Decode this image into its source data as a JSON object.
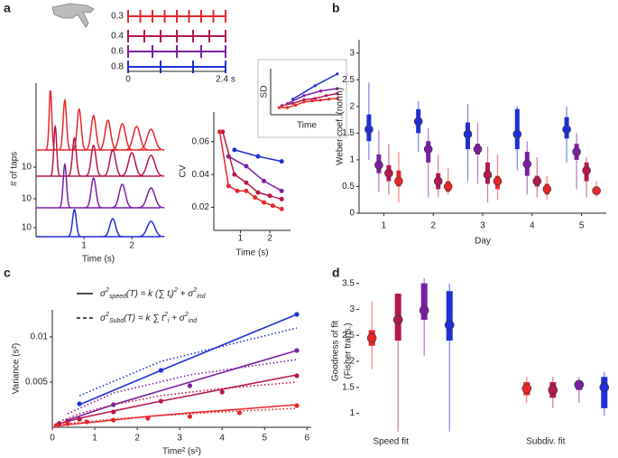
{
  "panel_labels": [
    "a",
    "b",
    "c",
    "d"
  ],
  "chart_data": [
    {
      "type": "raster",
      "xlim": [
        0,
        2.4
      ],
      "xticks": [
        0,
        {
          "value": 2.4,
          "label": "2.4 s"
        }
      ],
      "series": [
        {
          "name": "0.3",
          "color": "#e8272a",
          "values": [
            0,
            0.3,
            0.6,
            0.9,
            1.2,
            1.5,
            1.8,
            2.1,
            2.4
          ]
        },
        {
          "name": "0.4",
          "color": "#b5174f",
          "values": [
            0,
            0.4,
            0.8,
            1.2,
            1.6,
            2.0,
            2.4
          ]
        },
        {
          "name": "0.6",
          "color": "#7b1fa2",
          "values": [
            0,
            0.6,
            1.2,
            1.8,
            2.4
          ]
        },
        {
          "name": "0.8",
          "color": "#1f2fd6",
          "values": [
            0,
            0.8,
            1.6,
            2.4
          ]
        }
      ]
    },
    {
      "type": "density",
      "xlabel": "Time (s)",
      "ylabel": "# of taps",
      "xlim": [
        0,
        2.6
      ],
      "xticks": [
        1,
        2
      ],
      "rows": [
        {
          "color": "#e8272a",
          "x": [
            0.3,
            0.6,
            0.9,
            1.2,
            1.5,
            1.8,
            2.1,
            2.4
          ],
          "values": [
            66,
            55,
            45,
            38,
            33,
            29,
            26,
            23
          ]
        },
        {
          "color": "#b5174f",
          "x": [
            0.4,
            0.8,
            1.2,
            1.6,
            2.0,
            2.4
          ],
          "values": [
            55,
            42,
            34,
            29,
            26,
            23
          ],
          "yticks": [
            10
          ]
        },
        {
          "color": "#7b1fa2",
          "x": [
            0.6,
            1.2,
            1.8,
            2.4
          ],
          "values": [
            48,
            33,
            26,
            22
          ],
          "yticks": [
            10
          ]
        },
        {
          "color": "#1f2fd6",
          "x": [
            0.8,
            1.6,
            2.4
          ],
          "values": [
            30,
            20,
            17
          ],
          "yticks": [
            10
          ]
        }
      ]
    },
    {
      "type": "line",
      "xlabel": "Time (s)",
      "ylabel": "CV",
      "xlim": [
        0.1,
        2.7
      ],
      "ylim": [
        0.006,
        0.078
      ],
      "xticks": [
        1,
        2
      ],
      "yticks": [
        0.02,
        0.04,
        0.06
      ],
      "series": [
        {
          "color": "#1f2fd6",
          "x": [
            0.8,
            1.6,
            2.4
          ],
          "values": [
            0.055,
            0.051,
            0.048
          ]
        },
        {
          "color": "#7b1fa2",
          "x": [
            0.6,
            1.2,
            1.8,
            2.4
          ],
          "values": [
            0.051,
            0.045,
            0.036,
            0.03
          ]
        },
        {
          "color": "#b5174f",
          "x": [
            0.4,
            0.8,
            1.2,
            1.6,
            2.0,
            2.4
          ],
          "values": [
            0.066,
            0.04,
            0.035,
            0.029,
            0.027,
            0.025
          ]
        },
        {
          "color": "#e8272a",
          "x": [
            0.3,
            0.6,
            0.9,
            1.2,
            1.5,
            1.8,
            2.1,
            2.4
          ],
          "values": [
            0.066,
            0.033,
            0.03,
            0.03,
            0.026,
            0.023,
            0.021,
            0.019
          ]
        }
      ]
    },
    {
      "type": "line",
      "xlabel": "Time",
      "ylabel": "SD",
      "xlim": [
        0,
        2.6
      ],
      "ylim": [
        0,
        0.13
      ],
      "series": [
        {
          "color": "#1f2fd6",
          "x": [
            0.8,
            1.6,
            2.4
          ],
          "values": [
            0.044,
            0.082,
            0.115
          ]
        },
        {
          "color": "#7b1fa2",
          "x": [
            0.6,
            1.2,
            1.8,
            2.4
          ],
          "values": [
            0.031,
            0.054,
            0.067,
            0.074
          ]
        },
        {
          "color": "#b5174f",
          "x": [
            0.4,
            0.8,
            1.2,
            1.6,
            2.0,
            2.4
          ],
          "values": [
            0.026,
            0.032,
            0.042,
            0.046,
            0.054,
            0.06
          ]
        },
        {
          "color": "#e8272a",
          "x": [
            0.3,
            0.6,
            0.9,
            1.2,
            1.5,
            1.8,
            2.1,
            2.4
          ],
          "values": [
            0.02,
            0.02,
            0.027,
            0.036,
            0.039,
            0.041,
            0.044,
            0.046
          ]
        }
      ]
    },
    {
      "type": "box",
      "xlabel": "Day",
      "ylabel": [
        "Weber coef. (norm)"
      ],
      "categories": [
        "1",
        "2",
        "3",
        "4",
        "5"
      ],
      "ylim": [
        0,
        3.25
      ],
      "yticks": [
        0,
        0.5,
        1,
        1.5,
        2,
        2.5,
        3
      ],
      "series": [
        {
          "color": "#1f2fd6",
          "median": [
            1.57,
            1.72,
            1.48,
            1.48,
            1.57
          ],
          "q1": [
            1.35,
            1.5,
            1.2,
            1.2,
            1.4
          ],
          "q3": [
            1.85,
            1.95,
            1.7,
            1.95,
            1.8
          ],
          "low": [
            1.0,
            1.15,
            0.6,
            0.8,
            0.95
          ],
          "high": [
            2.45,
            2.1,
            2.05,
            2.0,
            2.0
          ]
        },
        {
          "color": "#7b1fa2",
          "median": [
            0.9,
            1.2,
            1.2,
            0.92,
            1.15
          ],
          "q1": [
            0.75,
            0.95,
            1.1,
            0.7,
            1.0
          ],
          "q3": [
            1.1,
            1.35,
            1.3,
            1.15,
            1.3
          ],
          "low": [
            0.4,
            0.3,
            0.55,
            0.35,
            0.45
          ],
          "high": [
            1.55,
            1.6,
            1.7,
            1.35,
            1.5
          ]
        },
        {
          "color": "#b5174f",
          "median": [
            0.75,
            0.6,
            0.72,
            0.6,
            0.8
          ],
          "q1": [
            0.6,
            0.45,
            0.55,
            0.5,
            0.6
          ],
          "q3": [
            0.9,
            0.75,
            0.95,
            0.7,
            0.95
          ],
          "low": [
            0.35,
            0.3,
            0.2,
            0.3,
            0.3
          ],
          "high": [
            1.3,
            1.1,
            1.25,
            1.05,
            1.05
          ]
        },
        {
          "color": "#e8272a",
          "median": [
            0.6,
            0.5,
            0.6,
            0.45,
            0.42
          ],
          "q1": [
            0.5,
            0.4,
            0.45,
            0.35,
            0.35
          ],
          "q3": [
            0.8,
            0.6,
            0.7,
            0.55,
            0.5
          ],
          "low": [
            0.2,
            0.35,
            0.25,
            0.25,
            0.3
          ],
          "high": [
            1.15,
            0.85,
            1.1,
            0.7,
            0.6
          ]
        }
      ]
    },
    {
      "type": "fit",
      "xlabel": "Time² (s²)",
      "ylabel": "Variance (s²)",
      "xlim": [
        0,
        6.1
      ],
      "ylim": [
        0,
        0.013
      ],
      "xticks": [
        0,
        1,
        2,
        3,
        4,
        5,
        6
      ],
      "yticks": [
        0.005,
        0.01
      ],
      "legend": [
        {
          "style": "solid",
          "parts": [
            {
              "text": "σ"
            },
            {
              "text": "2",
              "script": "sup"
            },
            {
              "text": "speed",
              "script": "sub"
            },
            {
              "text": "(T) = k (∑ t"
            },
            {
              "text": "i",
              "script": "sub"
            },
            {
              "text": ")"
            },
            {
              "text": "2",
              "script": "sup"
            },
            {
              "text": " + σ"
            },
            {
              "text": "2",
              "script": "sup"
            },
            {
              "text": "ind",
              "script": "sub"
            }
          ]
        },
        {
          "style": "dashed",
          "parts": [
            {
              "text": "σ"
            },
            {
              "text": "2",
              "script": "sup"
            },
            {
              "text": "Subd",
              "script": "sub"
            },
            {
              "text": "(T) = k ∑ t"
            },
            {
              "text": "2",
              "script": "sup"
            },
            {
              "text": "i",
              "script": "sub"
            },
            {
              "text": " + σ"
            },
            {
              "text": "2",
              "script": "sup"
            },
            {
              "text": "ind",
              "script": "sub"
            }
          ]
        }
      ],
      "series": [
        {
          "color": "#1f2fd6",
          "x": [
            0.64,
            2.56,
            5.76
          ],
          "values": [
            0.0026,
            0.0063,
            0.0125
          ],
          "speed_fit": [
            0.0025,
            0.0063,
            0.0125
          ],
          "subdiv_fit": [
            0.0035,
            0.0073,
            0.011
          ]
        },
        {
          "color": "#7b1fa2",
          "x": [
            0.36,
            1.44,
            3.24,
            5.76
          ],
          "values": [
            0.0007,
            0.0025,
            0.0046,
            0.0085
          ],
          "speed_fit": [
            0.0008,
            0.0025,
            0.005,
            0.0085
          ],
          "subdiv_fit": [
            0.0015,
            0.0038,
            0.0058,
            0.0075
          ]
        },
        {
          "color": "#b5174f",
          "x": [
            0.16,
            0.64,
            1.44,
            2.56,
            4.0,
            5.76
          ],
          "values": [
            0.0004,
            0.0009,
            0.0017,
            0.0029,
            0.0039,
            0.0057
          ],
          "speed_fit": [
            0.0004,
            0.001,
            0.0018,
            0.0029,
            0.0042,
            0.0058
          ],
          "subdiv_fit": [
            0.0006,
            0.0015,
            0.0025,
            0.0035,
            0.0043,
            0.005
          ]
        },
        {
          "color": "#e8272a",
          "x": [
            0.09,
            0.36,
            0.81,
            1.44,
            2.25,
            3.24,
            4.41,
            5.76
          ],
          "values": [
            0.0002,
            0.0004,
            0.0006,
            0.0008,
            0.001,
            0.0012,
            0.0016,
            0.0024
          ],
          "speed_fit": [
            0.0001,
            0.0003,
            0.0005,
            0.0008,
            0.0012,
            0.0016,
            0.002,
            0.0025
          ],
          "subdiv_fit": [
            0.0002,
            0.0004,
            0.0006,
            0.0009,
            0.0012,
            0.0015,
            0.0018,
            0.0021
          ]
        }
      ]
    },
    {
      "type": "box",
      "ylabel": [
        "Goodness of fit",
        "(Fisher trans.)"
      ],
      "categories": [
        "Speed fit",
        "Subdiv. fit"
      ],
      "ylim": [
        0.75,
        3.65
      ],
      "yticks": [
        1,
        1.5,
        2,
        2.5,
        3,
        3.5
      ],
      "series": [
        {
          "color": "#e8272a",
          "median": [
            2.45,
            1.48
          ],
          "q1": [
            2.3,
            1.35
          ],
          "q3": [
            2.6,
            1.6
          ],
          "low": [
            1.85,
            1.2
          ],
          "high": [
            3.15,
            1.7
          ]
        },
        {
          "color": "#b5174f",
          "median": [
            2.8,
            1.45
          ],
          "q1": [
            2.4,
            1.3
          ],
          "q3": [
            3.3,
            1.6
          ],
          "low": [
            0.65,
            1.1
          ],
          "high": [
            3.3,
            1.7
          ]
        },
        {
          "color": "#7b1fa2",
          "median": [
            2.98,
            1.55
          ],
          "q1": [
            2.8,
            1.45
          ],
          "q3": [
            3.5,
            1.62
          ],
          "low": [
            2.1,
            1.2
          ],
          "high": [
            3.6,
            1.7
          ]
        },
        {
          "color": "#1f2fd6",
          "median": [
            2.7,
            1.5
          ],
          "q1": [
            2.4,
            1.1
          ],
          "q3": [
            3.35,
            1.7
          ],
          "low": [
            0.65,
            0.95
          ],
          "high": [
            3.5,
            1.8
          ]
        }
      ]
    }
  ]
}
